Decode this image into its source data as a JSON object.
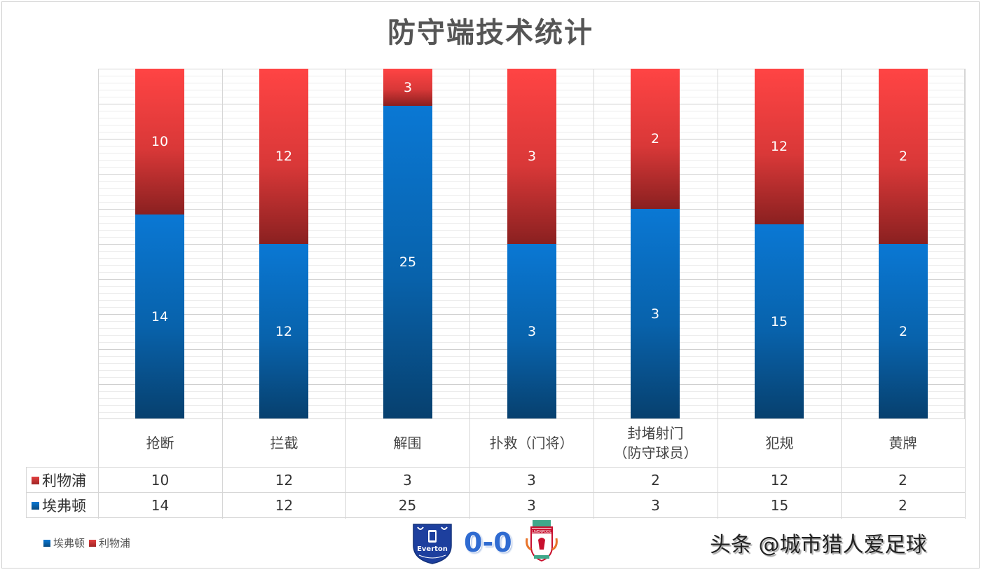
{
  "title": "防守端技术统计",
  "chart_data": {
    "type": "bar",
    "stacked": "percent",
    "title": "防守端技术统计",
    "categories": [
      "抢断",
      "拦截",
      "解围",
      "扑救（门将）",
      "封堵射门（防守球员）",
      "犯规",
      "黄牌"
    ],
    "series": [
      {
        "name": "埃弗顿",
        "color": "#0a6fc4",
        "values": [
          14,
          12,
          25,
          3,
          3,
          15,
          2
        ]
      },
      {
        "name": "利物浦",
        "color": "#e33b3b",
        "values": [
          10,
          12,
          3,
          3,
          2,
          12,
          2
        ]
      }
    ],
    "xlabel": "",
    "ylabel": "",
    "ylim": [
      0,
      100
    ],
    "grid": true,
    "legend_position": "bottom-left",
    "data_table": true
  },
  "table": {
    "categories": [
      {
        "line1": "抢断",
        "line2": ""
      },
      {
        "line1": "拦截",
        "line2": ""
      },
      {
        "line1": "解围",
        "line2": ""
      },
      {
        "line1": "扑救（门将）",
        "line2": ""
      },
      {
        "line1": "封堵射门",
        "line2": "（防守球员）"
      },
      {
        "line1": "犯规",
        "line2": ""
      },
      {
        "line1": "黄牌",
        "line2": ""
      }
    ],
    "rows": [
      {
        "label": "利物浦",
        "values": [
          "10",
          "12",
          "3",
          "3",
          "2",
          "12",
          "2"
        ]
      },
      {
        "label": "埃弗顿",
        "values": [
          "14",
          "12",
          "25",
          "3",
          "3",
          "15",
          "2"
        ]
      }
    ]
  },
  "bar_labels": {
    "blue": [
      "14",
      "12",
      "25",
      "3",
      "3",
      "15",
      "2"
    ],
    "red": [
      "10",
      "12",
      "3",
      "3",
      "2",
      "12",
      "2"
    ]
  },
  "legend": {
    "items": [
      {
        "label": "埃弗顿"
      },
      {
        "label": "利物浦"
      }
    ]
  },
  "match": {
    "home_logo": "everton-crest-icon",
    "home_logo_text": "Everton",
    "score": "0-0",
    "away_logo": "liverpool-crest-icon",
    "away_logo_text": "LIVERPOOL"
  },
  "watermark": "头条 @城市猎人爱足球"
}
